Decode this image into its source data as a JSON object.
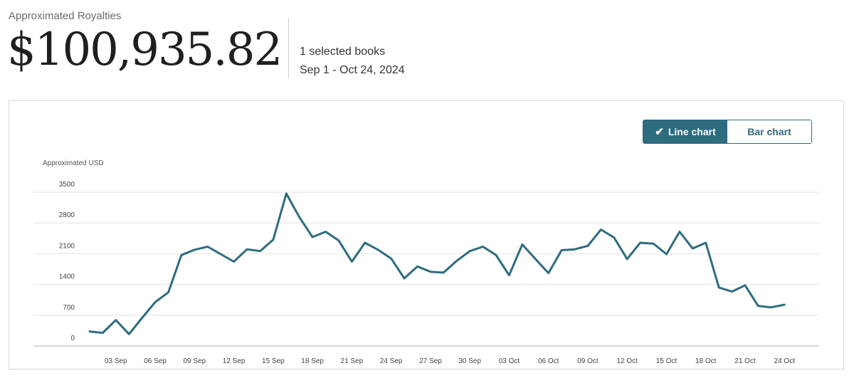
{
  "summary": {
    "label": "Approximated Royalties",
    "total": "$100,935.82",
    "selected_books": "1 selected books",
    "date_range": "Sep 1 - Oct 24, 2024"
  },
  "toggle": {
    "line_label": "Line chart",
    "bar_label": "Bar chart",
    "active": "line",
    "check_icon": "check-icon"
  },
  "colors": {
    "accent": "#2e6c80",
    "line": "#2e6c80",
    "grid": "#e2e2e2",
    "axis": "#bdbdbd"
  },
  "chart_data": {
    "type": "line",
    "ylabel": "Approximated USD",
    "xlabel": "",
    "ylim": [
      0,
      3500
    ],
    "yticks": [
      0,
      700,
      1400,
      2100,
      2800,
      3500
    ],
    "grid": "horizontal",
    "x_tick_labels": [
      "03 Sep",
      "06 Sep",
      "09 Sep",
      "12 Sep",
      "15 Sep",
      "18 Sep",
      "21 Sep",
      "24 Sep",
      "27 Sep",
      "30 Sep",
      "03 Oct",
      "06 Oct",
      "09 Oct",
      "12 Oct",
      "15 Oct",
      "18 Oct",
      "21 Oct",
      "24 Oct"
    ],
    "x_tick_positions": [
      2,
      5,
      8,
      11,
      14,
      17,
      20,
      23,
      26,
      29,
      32,
      35,
      38,
      41,
      44,
      47,
      50,
      53
    ],
    "x_start": "Sep 1",
    "values": [
      330,
      300,
      590,
      270,
      640,
      1000,
      1220,
      2070,
      2190,
      2260,
      2090,
      1920,
      2200,
      2160,
      2420,
      3470,
      2930,
      2480,
      2600,
      2400,
      1920,
      2350,
      2190,
      1990,
      1540,
      1810,
      1690,
      1670,
      1940,
      2160,
      2260,
      2070,
      1610,
      2310,
      1980,
      1660,
      2180,
      2200,
      2280,
      2650,
      2470,
      1980,
      2350,
      2330,
      2090,
      2600,
      2220,
      2350,
      1330,
      1240,
      1380,
      910,
      880,
      940
    ]
  }
}
